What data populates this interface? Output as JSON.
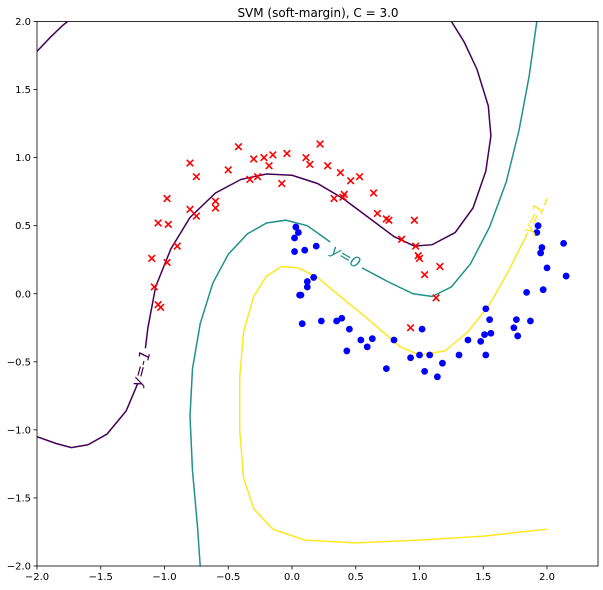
{
  "chart_data": {
    "type": "scatter",
    "title": "SVM (soft-margin), C = 3.0",
    "xlim": [
      -2.0,
      2.4
    ],
    "ylim": [
      -2.0,
      2.0
    ],
    "xticks": [
      -2.0,
      -1.5,
      -1.0,
      -0.5,
      0.0,
      0.5,
      1.0,
      1.5,
      2.0
    ],
    "yticks": [
      -2.0,
      -1.5,
      -1.0,
      -0.5,
      0.0,
      0.5,
      1.0,
      1.5,
      2.0
    ],
    "xtick_labels": [
      "−2.0",
      "−1.5",
      "−1.0",
      "−0.5",
      "0.0",
      "0.5",
      "1.0",
      "1.5",
      "2.0"
    ],
    "ytick_labels": [
      "−2.0",
      "−1.5",
      "−1.0",
      "−0.5",
      "0.0",
      "0.5",
      "1.0",
      "1.5",
      "2.0"
    ],
    "series": [
      {
        "marker": "x",
        "color": "#ff0000",
        "points": [
          [
            -1.1,
            0.26
          ],
          [
            -1.08,
            0.05
          ],
          [
            -1.05,
            0.52
          ],
          [
            -1.05,
            -0.08
          ],
          [
            -1.03,
            -0.1
          ],
          [
            -0.98,
            0.7
          ],
          [
            -0.97,
            0.51
          ],
          [
            -0.98,
            0.23
          ],
          [
            -0.9,
            0.35
          ],
          [
            -0.8,
            0.62
          ],
          [
            -0.8,
            0.96
          ],
          [
            -0.75,
            0.57
          ],
          [
            -0.75,
            0.86
          ],
          [
            -0.6,
            0.68
          ],
          [
            -0.6,
            0.63
          ],
          [
            -0.5,
            0.91
          ],
          [
            -0.42,
            1.08
          ],
          [
            -0.33,
            0.84
          ],
          [
            -0.3,
            0.99
          ],
          [
            -0.27,
            0.86
          ],
          [
            -0.22,
            1.0
          ],
          [
            -0.18,
            0.94
          ],
          [
            -0.15,
            1.02
          ],
          [
            -0.08,
            0.81
          ],
          [
            -0.04,
            1.03
          ],
          [
            0.11,
            1.0
          ],
          [
            0.14,
            0.95
          ],
          [
            0.22,
            1.1
          ],
          [
            0.28,
            0.94
          ],
          [
            0.33,
            0.7
          ],
          [
            0.38,
            0.89
          ],
          [
            0.4,
            0.71
          ],
          [
            0.41,
            0.73
          ],
          [
            0.46,
            0.83
          ],
          [
            0.53,
            0.86
          ],
          [
            0.64,
            0.74
          ],
          [
            0.67,
            0.59
          ],
          [
            0.74,
            0.55
          ],
          [
            0.76,
            0.54
          ],
          [
            0.86,
            0.4
          ],
          [
            0.93,
            -0.25
          ],
          [
            0.96,
            0.54
          ],
          [
            0.97,
            0.35
          ],
          [
            0.99,
            0.28
          ],
          [
            1.0,
            0.26
          ],
          [
            1.04,
            0.14
          ],
          [
            1.13,
            -0.03
          ],
          [
            1.16,
            0.2
          ]
        ]
      },
      {
        "marker": "o",
        "color": "#0000ff",
        "points": [
          [
            0.02,
            0.31
          ],
          [
            0.02,
            0.41
          ],
          [
            0.03,
            0.49
          ],
          [
            0.05,
            0.45
          ],
          [
            0.06,
            -0.01
          ],
          [
            0.07,
            -0.01
          ],
          [
            0.08,
            -0.22
          ],
          [
            0.1,
            0.32
          ],
          [
            0.12,
            0.05
          ],
          [
            0.12,
            0.09
          ],
          [
            0.17,
            0.12
          ],
          [
            0.19,
            0.35
          ],
          [
            0.23,
            -0.2
          ],
          [
            0.35,
            -0.2
          ],
          [
            0.39,
            -0.18
          ],
          [
            0.43,
            -0.42
          ],
          [
            0.45,
            -0.26
          ],
          [
            0.54,
            -0.34
          ],
          [
            0.59,
            -0.39
          ],
          [
            0.63,
            -0.33
          ],
          [
            0.74,
            -0.55
          ],
          [
            0.8,
            -0.34
          ],
          [
            0.93,
            -0.47
          ],
          [
            1.0,
            -0.45
          ],
          [
            1.02,
            -0.26
          ],
          [
            1.04,
            -0.57
          ],
          [
            1.08,
            -0.45
          ],
          [
            1.14,
            -0.61
          ],
          [
            1.18,
            -0.51
          ],
          [
            1.31,
            -0.45
          ],
          [
            1.38,
            -0.34
          ],
          [
            1.48,
            -0.35
          ],
          [
            1.51,
            -0.3
          ],
          [
            1.52,
            -0.45
          ],
          [
            1.52,
            -0.11
          ],
          [
            1.55,
            -0.19
          ],
          [
            1.56,
            -0.29
          ],
          [
            1.74,
            -0.25
          ],
          [
            1.76,
            -0.19
          ],
          [
            1.77,
            -0.31
          ],
          [
            1.84,
            0.01
          ],
          [
            1.87,
            -0.2
          ],
          [
            1.92,
            0.45
          ],
          [
            1.93,
            0.5
          ],
          [
            1.95,
            0.3
          ],
          [
            1.96,
            0.34
          ],
          [
            1.97,
            0.03
          ],
          [
            2.0,
            0.19
          ],
          [
            2.13,
            0.37
          ],
          [
            2.15,
            0.13
          ]
        ]
      }
    ],
    "contours": [
      {
        "label": "y=-1",
        "color": "#440154",
        "segments": [
          [
            [
              -2.0,
              1.78
            ],
            [
              -1.9,
              1.88
            ],
            [
              -1.8,
              1.97
            ],
            [
              -1.76,
              2.0
            ]
          ],
          [
            [
              1.25,
              2.0
            ],
            [
              1.35,
              1.85
            ],
            [
              1.45,
              1.65
            ],
            [
              1.54,
              1.38
            ],
            [
              1.56,
              1.16
            ],
            [
              1.52,
              0.9
            ],
            [
              1.42,
              0.63
            ],
            [
              1.28,
              0.45
            ],
            [
              1.1,
              0.36
            ],
            [
              0.96,
              0.35
            ],
            [
              0.8,
              0.42
            ],
            [
              0.6,
              0.56
            ],
            [
              0.4,
              0.7
            ],
            [
              0.2,
              0.81
            ],
            [
              0.0,
              0.87
            ],
            [
              -0.2,
              0.88
            ],
            [
              -0.4,
              0.84
            ],
            [
              -0.6,
              0.74
            ],
            [
              -0.8,
              0.56
            ],
            [
              -0.95,
              0.33
            ],
            [
              -1.07,
              0.05
            ],
            [
              -1.13,
              -0.25
            ],
            [
              -1.15,
              -0.4
            ]
          ],
          [
            [
              -1.21,
              -0.66
            ],
            [
              -1.3,
              -0.86
            ],
            [
              -1.45,
              -1.03
            ],
            [
              -1.6,
              -1.11
            ],
            [
              -1.73,
              -1.13
            ],
            [
              -1.85,
              -1.1
            ],
            [
              -2.0,
              -1.05
            ]
          ]
        ]
      },
      {
        "label": "y=0",
        "color": "#21918c",
        "segments": [
          [
            [
              0.3,
              0.38
            ],
            [
              0.12,
              0.5
            ],
            [
              -0.05,
              0.54
            ],
            [
              -0.2,
              0.52
            ],
            [
              -0.35,
              0.44
            ],
            [
              -0.5,
              0.29
            ],
            [
              -0.62,
              0.08
            ],
            [
              -0.72,
              -0.22
            ],
            [
              -0.78,
              -0.55
            ],
            [
              -0.8,
              -0.9
            ],
            [
              -0.78,
              -1.3
            ],
            [
              -0.74,
              -1.72
            ],
            [
              -0.72,
              -2.0
            ]
          ],
          [
            [
              0.55,
              0.19
            ],
            [
              0.75,
              0.09
            ],
            [
              0.95,
              0.0
            ],
            [
              1.1,
              -0.02
            ],
            [
              1.25,
              0.05
            ],
            [
              1.4,
              0.22
            ],
            [
              1.55,
              0.49
            ],
            [
              1.68,
              0.82
            ],
            [
              1.78,
              1.2
            ],
            [
              1.86,
              1.6
            ],
            [
              1.92,
              2.0
            ]
          ]
        ]
      },
      {
        "label": "y=1",
        "color": "#fde725",
        "segments": [
          [
            [
              1.85,
              0.45
            ],
            [
              1.7,
              0.17
            ],
            [
              1.55,
              -0.08
            ],
            [
              1.38,
              -0.28
            ],
            [
              1.2,
              -0.42
            ],
            [
              1.0,
              -0.45
            ],
            [
              0.85,
              -0.39
            ],
            [
              0.7,
              -0.27
            ],
            [
              0.55,
              -0.15
            ],
            [
              0.38,
              -0.02
            ],
            [
              0.2,
              0.12
            ],
            [
              0.05,
              0.19
            ],
            [
              -0.08,
              0.2
            ],
            [
              -0.2,
              0.13
            ],
            [
              -0.3,
              -0.02
            ],
            [
              -0.38,
              -0.28
            ],
            [
              -0.41,
              -0.62
            ],
            [
              -0.41,
              -1.0
            ],
            [
              -0.38,
              -1.35
            ],
            [
              -0.3,
              -1.58
            ],
            [
              -0.15,
              -1.73
            ],
            [
              0.1,
              -1.81
            ],
            [
              0.5,
              -1.83
            ],
            [
              1.0,
              -1.81
            ],
            [
              1.5,
              -1.78
            ],
            [
              2.0,
              -1.73
            ]
          ],
          [
            [
              1.98,
              0.65
            ],
            [
              2.0,
              0.7
            ]
          ]
        ]
      }
    ],
    "contour_labels": [
      {
        "text": "y=-1",
        "x": -1.18,
        "y": -0.55,
        "color": "#440154",
        "rotate": -75
      },
      {
        "text": "y=0",
        "x": 0.42,
        "y": 0.27,
        "color": "#21918c",
        "rotate": 30
      },
      {
        "text": "y=1",
        "x": 1.9,
        "y": 0.55,
        "color": "#fde725",
        "rotate": -65
      }
    ]
  }
}
